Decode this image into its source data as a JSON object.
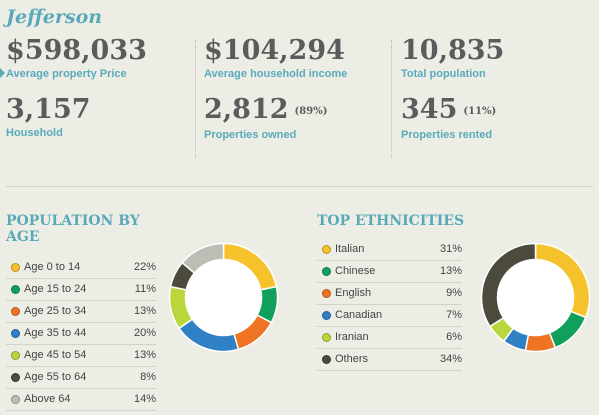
{
  "title": "Jefferson",
  "stats": {
    "avg_price": {
      "value": "$598,033",
      "label": "Average property Price"
    },
    "avg_income": {
      "value": "$104,294",
      "label": "Average household income"
    },
    "population": {
      "value": "10,835",
      "label": "Total population"
    },
    "household": {
      "value": "3,157",
      "label": "Household"
    },
    "owned": {
      "value": "2,812",
      "pct": "(89%)",
      "label": "Properties owned"
    },
    "rented": {
      "value": "345",
      "pct": "(11%)",
      "label": "Properties rented"
    }
  },
  "age": {
    "title": "POPULATION BY AGE",
    "items": [
      {
        "label": "Age 0 to 14",
        "value": "22%",
        "pct": 22,
        "color": "#f6c22c"
      },
      {
        "label": "Age 15 to 24",
        "value": "11%",
        "pct": 11,
        "color": "#11a05c"
      },
      {
        "label": "Age 25 to 34",
        "value": "13%",
        "pct": 13,
        "color": "#ee7423"
      },
      {
        "label": "Age 35 to 44",
        "value": "20%",
        "pct": 20,
        "color": "#2f80c5"
      },
      {
        "label": "Age 45 to 54",
        "value": "13%",
        "pct": 13,
        "color": "#b9d73d"
      },
      {
        "label": "Age 55 to 64",
        "value": "8%",
        "pct": 8,
        "color": "#4c4a3d"
      },
      {
        "label": "Above 64",
        "value": "14%",
        "pct": 14,
        "color": "#bdbdb6"
      }
    ]
  },
  "ethnicity": {
    "title": "TOP ETHNICITIES",
    "items": [
      {
        "label": "Italian",
        "value": "31%",
        "pct": 31,
        "color": "#f6c22c"
      },
      {
        "label": "Chinese",
        "value": "13%",
        "pct": 13,
        "color": "#11a05c"
      },
      {
        "label": "English",
        "value": "9%",
        "pct": 9,
        "color": "#ee7423"
      },
      {
        "label": "Canadian",
        "value": "7%",
        "pct": 7,
        "color": "#2f80c5"
      },
      {
        "label": "Iranian",
        "value": "6%",
        "pct": 6,
        "color": "#b9d73d"
      },
      {
        "label": "Others",
        "value": "34%",
        "pct": 34,
        "color": "#4c4a3d"
      }
    ]
  }
}
